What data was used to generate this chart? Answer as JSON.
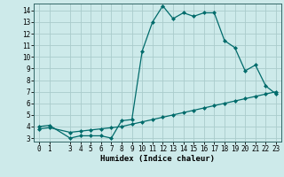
{
  "xlabel": "Humidex (Indice chaleur)",
  "bg_color": "#cdeaea",
  "grid_color": "#aacccc",
  "line_color": "#006b6b",
  "ylim": [
    2.7,
    14.6
  ],
  "xlim": [
    -0.5,
    23.5
  ],
  "yticks": [
    3,
    4,
    5,
    6,
    7,
    8,
    9,
    10,
    11,
    12,
    13,
    14
  ],
  "xticks": [
    0,
    1,
    3,
    4,
    5,
    6,
    7,
    8,
    9,
    10,
    11,
    12,
    13,
    14,
    15,
    16,
    17,
    18,
    19,
    20,
    21,
    22,
    23
  ],
  "line1_x": [
    0,
    1,
    3,
    4,
    5,
    6,
    7,
    8,
    9,
    10,
    11,
    12,
    13,
    14,
    15,
    16,
    17,
    18,
    19,
    20,
    21,
    22,
    23
  ],
  "line1_y": [
    4.0,
    4.1,
    3.0,
    3.2,
    3.2,
    3.2,
    3.0,
    4.5,
    4.6,
    10.5,
    13.0,
    14.4,
    13.3,
    13.8,
    13.5,
    13.8,
    13.8,
    11.4,
    10.8,
    8.8,
    9.3,
    7.5,
    6.8
  ],
  "line2_x": [
    0,
    1,
    3,
    4,
    5,
    6,
    7,
    8,
    9,
    10,
    11,
    12,
    13,
    14,
    15,
    16,
    17,
    18,
    19,
    20,
    21,
    22,
    23
  ],
  "line2_y": [
    3.8,
    3.9,
    3.5,
    3.6,
    3.7,
    3.8,
    3.9,
    4.0,
    4.2,
    4.4,
    4.6,
    4.8,
    5.0,
    5.2,
    5.4,
    5.6,
    5.8,
    6.0,
    6.2,
    6.4,
    6.6,
    6.8,
    7.0
  ]
}
